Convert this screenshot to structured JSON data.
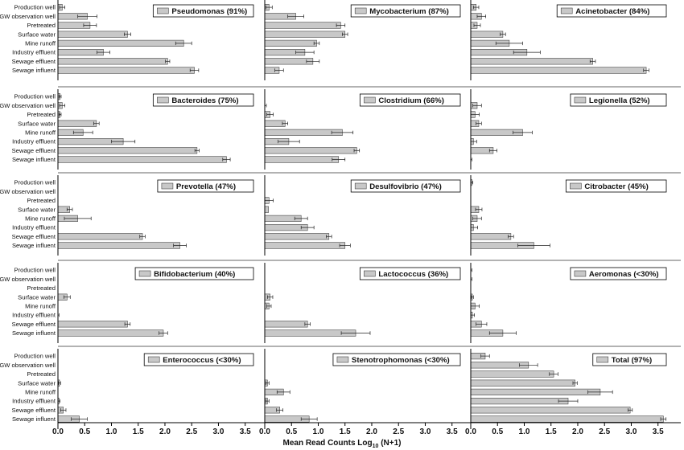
{
  "chart_data": {
    "type": "bar",
    "orientation": "horizontal",
    "categories": [
      "Production well",
      "GW observation well",
      "Pretreated",
      "Surface water",
      "Mine runoff",
      "Industry effluent",
      "Sewage effluent",
      "Sewage influent"
    ],
    "xlabel_main": "Mean Read Counts Log",
    "xlabel_sub": "10",
    "xlabel_tail": " (N+1)",
    "xlim": [
      0,
      3.7
    ],
    "ticks": [
      "0.0",
      "0.5",
      "1.0",
      "1.5",
      "2.0",
      "2.5",
      "3.0",
      "3.5"
    ],
    "grid": false,
    "panels": [
      {
        "title": "Pseudomonas (91%)",
        "values": [
          0.08,
          0.55,
          0.6,
          1.3,
          2.35,
          0.85,
          2.05,
          2.55
        ],
        "errors": [
          0.05,
          0.18,
          0.12,
          0.06,
          0.15,
          0.12,
          0.04,
          0.08
        ]
      },
      {
        "title": "Mycobacterium (87%)",
        "values": [
          0.08,
          0.58,
          1.42,
          1.5,
          0.97,
          0.75,
          0.9,
          0.27
        ],
        "errors": [
          0.06,
          0.15,
          0.08,
          0.05,
          0.05,
          0.17,
          0.12,
          0.08
        ]
      },
      {
        "title": "Acinetobacter (84%)",
        "values": [
          0.1,
          0.2,
          0.12,
          0.6,
          0.72,
          1.05,
          2.28,
          3.28
        ],
        "errors": [
          0.05,
          0.08,
          0.06,
          0.05,
          0.25,
          0.25,
          0.05,
          0.05
        ]
      },
      {
        "title": "Bacteroides (75%)",
        "values": [
          0.04,
          0.08,
          0.04,
          0.72,
          0.47,
          1.22,
          2.6,
          3.15
        ],
        "errors": [
          0.02,
          0.05,
          0.02,
          0.05,
          0.18,
          0.22,
          0.04,
          0.07
        ]
      },
      {
        "title": "Clostridium (66%)",
        "values": [
          0.0,
          0.0,
          0.1,
          0.38,
          1.45,
          0.45,
          1.72,
          1.38
        ],
        "errors": [
          0.0,
          0.03,
          0.06,
          0.05,
          0.2,
          0.2,
          0.05,
          0.12
        ]
      },
      {
        "title": "Legionella (52%)",
        "values": [
          0.0,
          0.12,
          0.08,
          0.15,
          0.97,
          0.05,
          0.42,
          0.0
        ],
        "errors": [
          0.0,
          0.08,
          0.08,
          0.05,
          0.18,
          0.06,
          0.07,
          0.02
        ]
      },
      {
        "title": "Prevotella (47%)",
        "values": [
          0.0,
          0.0,
          0.0,
          0.22,
          0.37,
          0.0,
          1.58,
          2.28
        ],
        "errors": [
          0.0,
          0.0,
          0.0,
          0.05,
          0.25,
          0.0,
          0.05,
          0.12
        ]
      },
      {
        "title": "Desulfovibrio (47%)",
        "values": [
          0.0,
          0.0,
          0.08,
          0.07,
          0.68,
          0.8,
          1.2,
          1.5
        ],
        "errors": [
          0.0,
          0.0,
          0.08,
          0.0,
          0.12,
          0.12,
          0.05,
          0.1
        ]
      },
      {
        "title": "Citrobacter (45%)",
        "values": [
          0.02,
          0.0,
          0.0,
          0.15,
          0.12,
          0.05,
          0.75,
          1.18
        ],
        "errors": [
          0.02,
          0.0,
          0.0,
          0.06,
          0.08,
          0.08,
          0.05,
          0.3
        ]
      },
      {
        "title": "Bifidobacterium (40%)",
        "values": [
          0.0,
          0.0,
          0.0,
          0.17,
          0.0,
          0.0,
          1.3,
          1.97
        ],
        "errors": [
          0.0,
          0.0,
          0.0,
          0.06,
          0.0,
          0.02,
          0.05,
          0.08
        ]
      },
      {
        "title": "Lactococcus (36%)",
        "values": [
          0.0,
          0.0,
          0.0,
          0.1,
          0.08,
          0.0,
          0.8,
          1.7
        ],
        "errors": [
          0.0,
          0.0,
          0.0,
          0.05,
          0.04,
          0.0,
          0.05,
          0.27
        ]
      },
      {
        "title": "Aeromonas (<30%)",
        "values": [
          0.0,
          0.0,
          0.0,
          0.03,
          0.08,
          0.03,
          0.2,
          0.6
        ],
        "errors": [
          0.02,
          0.02,
          0.0,
          0.02,
          0.08,
          0.04,
          0.1,
          0.25
        ]
      },
      {
        "title": "Enterococcus (<30%)",
        "values": [
          0.0,
          0.0,
          0.0,
          0.03,
          0.0,
          0.02,
          0.1,
          0.4
        ],
        "errors": [
          0.0,
          0.0,
          0.0,
          0.02,
          0.0,
          0.02,
          0.05,
          0.15
        ]
      },
      {
        "title": "Stenotrophomonas (<30%)",
        "values": [
          0.0,
          0.0,
          0.0,
          0.05,
          0.35,
          0.05,
          0.28,
          0.83
        ],
        "errors": [
          0.0,
          0.0,
          0.0,
          0.03,
          0.12,
          0.03,
          0.06,
          0.15
        ]
      },
      {
        "title": "Total (97%)",
        "values": [
          0.27,
          1.08,
          1.55,
          1.95,
          2.42,
          1.82,
          2.98,
          3.6
        ],
        "errors": [
          0.08,
          0.17,
          0.08,
          0.04,
          0.23,
          0.18,
          0.04,
          0.05
        ]
      }
    ]
  },
  "colors": {
    "bar_fill": "#c8c8c8",
    "bar_stroke": "#444444",
    "axis": "#000000",
    "text": "#111111"
  }
}
